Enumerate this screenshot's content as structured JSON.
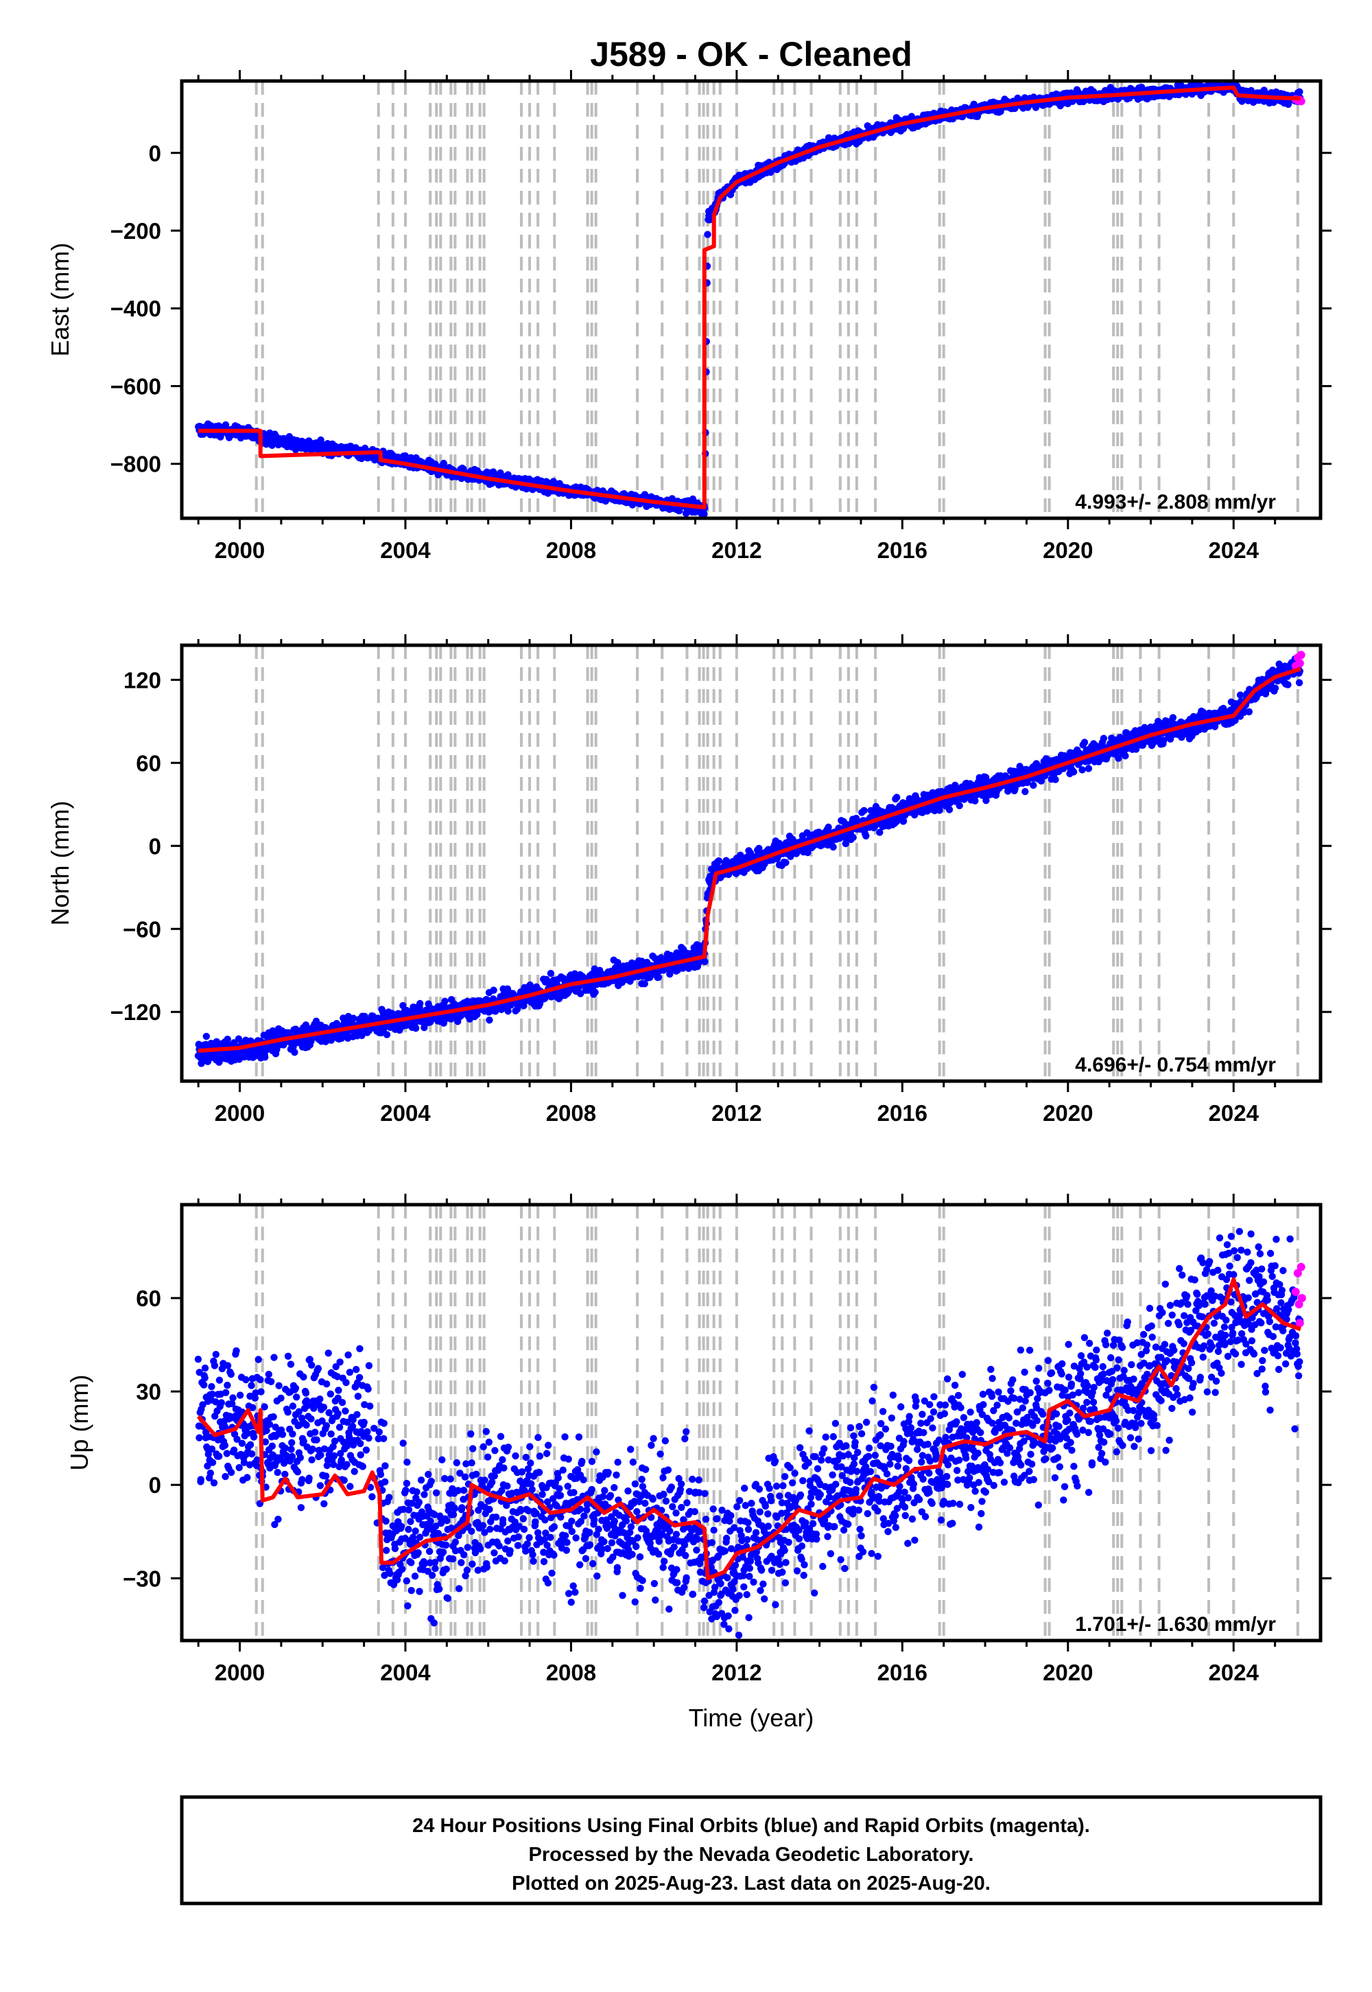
{
  "colors": {
    "final": "#0000ff",
    "rapid": "#ff00ff",
    "model": "#ff0000",
    "steps": "#bdbdbd",
    "frame": "#000000"
  },
  "footer": {
    "line1": "24 Hour Positions Using Final Orbits (blue) and Rapid Orbits (magenta).",
    "line2": "Processed by the Nevada Geodetic Laboratory.",
    "line3": "Plotted on 2025-Aug-23. Last data on 2025-Aug-20."
  },
  "chart_data": [
    {
      "type": "scatter",
      "title": "J589  - OK - Cleaned",
      "xlabel": "",
      "ylabel": "East (mm)",
      "xlim": [
        1998.6,
        2026.1
      ],
      "ylim": [
        -940,
        185
      ],
      "xticks": [
        2000,
        2004,
        2008,
        2012,
        2016,
        2020,
        2024
      ],
      "yticks": [
        0,
        -200,
        -400,
        -600,
        -800
      ],
      "rate_label": "4.993+/- 2.808 mm/yr",
      "steps": [
        2000.4,
        2000.55,
        2003.35,
        2003.7,
        2004.0,
        2004.6,
        2004.75,
        2004.85,
        2005.1,
        2005.2,
        2005.5,
        2005.6,
        2005.8,
        2005.9,
        2006.8,
        2007.0,
        2007.2,
        2007.6,
        2008.4,
        2008.5,
        2008.6,
        2009.6,
        2010.2,
        2010.8,
        2011.1,
        2011.2,
        2011.3,
        2011.45,
        2011.6,
        2012.0,
        2012.9,
        2013.1,
        2013.4,
        2013.8,
        2014.5,
        2014.7,
        2014.9,
        2015.35,
        2016.9,
        2017.0,
        2019.45,
        2019.55,
        2021.1,
        2021.2,
        2021.3,
        2021.75,
        2022.2,
        2023.4,
        2024.0,
        2025.55
      ],
      "final": [
        [
          1999.0,
          -712
        ],
        [
          2000.0,
          -718
        ],
        [
          2001.0,
          -742
        ],
        [
          2002.0,
          -758
        ],
        [
          2003.0,
          -772
        ],
        [
          2004.0,
          -796
        ],
        [
          2005.0,
          -818
        ],
        [
          2006.0,
          -836
        ],
        [
          2007.0,
          -852
        ],
        [
          2008.0,
          -868
        ],
        [
          2009.0,
          -884
        ],
        [
          2010.0,
          -898
        ],
        [
          2011.0,
          -912
        ],
        [
          2011.23,
          -914
        ],
        [
          2011.3,
          -175
        ],
        [
          2011.6,
          -115
        ],
        [
          2012.0,
          -75
        ],
        [
          2013.0,
          -25
        ],
        [
          2014.0,
          15
        ],
        [
          2015.0,
          45
        ],
        [
          2016.0,
          75
        ],
        [
          2017.0,
          95
        ],
        [
          2018.0,
          115
        ],
        [
          2019.0,
          130
        ],
        [
          2020.0,
          142
        ],
        [
          2021.0,
          148
        ],
        [
          2022.0,
          155
        ],
        [
          2023.0,
          162
        ],
        [
          2024.0,
          172
        ],
        [
          2024.2,
          148
        ],
        [
          2025.0,
          142
        ],
        [
          2025.6,
          138
        ]
      ],
      "final_spread": 7,
      "rapid": [
        [
          2025.5,
          138
        ],
        [
          2025.55,
          135
        ],
        [
          2025.6,
          136
        ],
        [
          2025.63,
          133
        ]
      ],
      "model": [
        [
          1999.0,
          -715
        ],
        [
          2000.5,
          -715
        ],
        [
          2000.5,
          -780
        ],
        [
          2003.4,
          -770
        ],
        [
          2003.4,
          -790
        ],
        [
          2004.0,
          -800
        ],
        [
          2006.0,
          -838
        ],
        [
          2008.0,
          -870
        ],
        [
          2010.0,
          -898
        ],
        [
          2011.22,
          -912
        ],
        [
          2011.22,
          -250
        ],
        [
          2011.45,
          -240
        ],
        [
          2011.45,
          -160
        ],
        [
          2011.6,
          -115
        ],
        [
          2012.0,
          -75
        ],
        [
          2013.0,
          -25
        ],
        [
          2014.0,
          15
        ],
        [
          2015.0,
          45
        ],
        [
          2016.0,
          75
        ],
        [
          2017.0,
          95
        ],
        [
          2018.0,
          115
        ],
        [
          2019.0,
          130
        ],
        [
          2020.0,
          142
        ],
        [
          2021.0,
          148
        ],
        [
          2022.0,
          155
        ],
        [
          2023.0,
          162
        ],
        [
          2024.0,
          168
        ],
        [
          2024.1,
          148
        ],
        [
          2025.0,
          142
        ],
        [
          2025.62,
          140
        ]
      ]
    },
    {
      "type": "scatter",
      "title": "",
      "xlabel": "",
      "ylabel": "North (mm)",
      "xlim": [
        1998.6,
        2026.1
      ],
      "ylim": [
        -170,
        145
      ],
      "xticks": [
        2000,
        2004,
        2008,
        2012,
        2016,
        2020,
        2024
      ],
      "yticks": [
        120,
        60,
        0,
        -60,
        -120
      ],
      "rate_label": "4.696+/- 0.754 mm/yr",
      "steps": [
        2000.4,
        2000.55,
        2003.35,
        2003.7,
        2004.0,
        2004.6,
        2004.75,
        2004.85,
        2005.1,
        2005.2,
        2005.5,
        2005.6,
        2005.8,
        2005.9,
        2006.8,
        2007.0,
        2007.2,
        2007.6,
        2008.4,
        2008.5,
        2008.6,
        2009.6,
        2010.2,
        2010.8,
        2011.1,
        2011.2,
        2011.3,
        2011.45,
        2011.6,
        2012.0,
        2012.9,
        2013.1,
        2013.4,
        2013.8,
        2014.5,
        2014.7,
        2014.9,
        2015.35,
        2016.9,
        2017.0,
        2019.45,
        2019.55,
        2021.1,
        2021.2,
        2021.3,
        2021.75,
        2022.2,
        2023.4,
        2024.0,
        2025.55
      ],
      "final": [
        [
          1999.0,
          -150
        ],
        [
          2000.0,
          -148
        ],
        [
          2001.0,
          -140
        ],
        [
          2002.0,
          -135
        ],
        [
          2003.0,
          -130
        ],
        [
          2004.0,
          -125
        ],
        [
          2005.0,
          -120
        ],
        [
          2006.0,
          -115
        ],
        [
          2007.0,
          -108
        ],
        [
          2008.0,
          -100
        ],
        [
          2009.0,
          -95
        ],
        [
          2010.0,
          -88
        ],
        [
          2011.0,
          -80
        ],
        [
          2011.23,
          -78
        ],
        [
          2011.3,
          -30
        ],
        [
          2011.5,
          -18
        ],
        [
          2012.0,
          -15
        ],
        [
          2013.0,
          -5
        ],
        [
          2014.0,
          5
        ],
        [
          2015.0,
          15
        ],
        [
          2016.0,
          25
        ],
        [
          2017.0,
          35
        ],
        [
          2018.0,
          42
        ],
        [
          2019.0,
          50
        ],
        [
          2020.0,
          60
        ],
        [
          2021.0,
          70
        ],
        [
          2022.0,
          80
        ],
        [
          2023.0,
          88
        ],
        [
          2024.0,
          95
        ],
        [
          2024.5,
          110
        ],
        [
          2025.0,
          122
        ],
        [
          2025.6,
          128
        ]
      ],
      "final_spread": 4,
      "rapid": [
        [
          2025.5,
          130
        ],
        [
          2025.55,
          136
        ],
        [
          2025.6,
          132
        ],
        [
          2025.63,
          138
        ]
      ],
      "model": [
        [
          1999.0,
          -148
        ],
        [
          2000.0,
          -146
        ],
        [
          2001.0,
          -140
        ],
        [
          2002.0,
          -135
        ],
        [
          2003.0,
          -130
        ],
        [
          2004.0,
          -125
        ],
        [
          2005.0,
          -120
        ],
        [
          2006.0,
          -115
        ],
        [
          2007.0,
          -108
        ],
        [
          2008.0,
          -100
        ],
        [
          2009.0,
          -95
        ],
        [
          2010.0,
          -88
        ],
        [
          2011.22,
          -80
        ],
        [
          2011.3,
          -50
        ],
        [
          2011.5,
          -20
        ],
        [
          2012.0,
          -16
        ],
        [
          2013.0,
          -5
        ],
        [
          2014.0,
          5
        ],
        [
          2015.0,
          15
        ],
        [
          2016.0,
          25
        ],
        [
          2017.0,
          35
        ],
        [
          2018.0,
          42
        ],
        [
          2019.0,
          50
        ],
        [
          2020.0,
          60
        ],
        [
          2021.0,
          70
        ],
        [
          2022.0,
          80
        ],
        [
          2023.0,
          88
        ],
        [
          2024.0,
          94
        ],
        [
          2024.5,
          112
        ],
        [
          2025.0,
          122
        ],
        [
          2025.62,
          128
        ]
      ]
    },
    {
      "type": "scatter",
      "title": "",
      "xlabel": "Time (year)",
      "ylabel": "Up (mm)",
      "xlim": [
        1998.6,
        2026.1
      ],
      "ylim": [
        -50,
        90
      ],
      "xticks": [
        2000,
        2004,
        2008,
        2012,
        2016,
        2020,
        2024
      ],
      "yticks": [
        60,
        30,
        0,
        -30
      ],
      "rate_label": "1.701+/- 1.630 mm/yr",
      "steps": [
        2000.4,
        2000.55,
        2003.35,
        2003.7,
        2004.0,
        2004.6,
        2004.75,
        2004.85,
        2005.1,
        2005.2,
        2005.5,
        2005.6,
        2005.8,
        2005.9,
        2006.8,
        2007.0,
        2007.2,
        2007.6,
        2008.4,
        2008.5,
        2008.6,
        2009.6,
        2010.2,
        2010.8,
        2011.1,
        2011.2,
        2011.3,
        2011.45,
        2011.6,
        2012.0,
        2012.9,
        2013.1,
        2013.4,
        2013.8,
        2014.5,
        2014.7,
        2014.9,
        2015.35,
        2016.9,
        2017.0,
        2019.45,
        2019.55,
        2021.1,
        2021.2,
        2021.3,
        2021.75,
        2022.2,
        2023.4,
        2024.0,
        2025.55
      ],
      "final": [
        [
          1999.0,
          20
        ],
        [
          2000.0,
          22
        ],
        [
          2000.5,
          18
        ],
        [
          2001.0,
          15
        ],
        [
          2002.0,
          20
        ],
        [
          2003.0,
          22
        ],
        [
          2003.4,
          10
        ],
        [
          2003.6,
          -22
        ],
        [
          2004.0,
          -20
        ],
        [
          2005.0,
          -15
        ],
        [
          2006.0,
          -5
        ],
        [
          2007.0,
          -8
        ],
        [
          2008.0,
          -10
        ],
        [
          2009.0,
          -10
        ],
        [
          2010.0,
          -12
        ],
        [
          2011.0,
          -15
        ],
        [
          2011.3,
          -28
        ],
        [
          2012.0,
          -22
        ],
        [
          2013.0,
          -12
        ],
        [
          2014.0,
          -5
        ],
        [
          2015.0,
          0
        ],
        [
          2016.0,
          5
        ],
        [
          2017.0,
          10
        ],
        [
          2018.0,
          15
        ],
        [
          2019.0,
          18
        ],
        [
          2020.0,
          22
        ],
        [
          2021.0,
          28
        ],
        [
          2022.0,
          35
        ],
        [
          2023.0,
          48
        ],
        [
          2024.0,
          62
        ],
        [
          2024.5,
          58
        ],
        [
          2025.0,
          55
        ],
        [
          2025.6,
          45
        ]
      ],
      "final_spread": 11,
      "rapid": [
        [
          2025.5,
          62
        ],
        [
          2025.55,
          68
        ],
        [
          2025.58,
          58
        ],
        [
          2025.6,
          52
        ],
        [
          2025.63,
          70
        ],
        [
          2025.65,
          60
        ]
      ],
      "model": [
        [
          1999.0,
          22
        ],
        [
          1999.4,
          16
        ],
        [
          1999.9,
          18
        ],
        [
          2000.2,
          24
        ],
        [
          2000.45,
          17
        ],
        [
          2000.5,
          24
        ],
        [
          2000.55,
          -5
        ],
        [
          2000.8,
          -4
        ],
        [
          2001.1,
          2
        ],
        [
          2001.4,
          -4
        ],
        [
          2002.0,
          -3
        ],
        [
          2002.3,
          3
        ],
        [
          2002.6,
          -3
        ],
        [
          2003.0,
          -2
        ],
        [
          2003.2,
          4
        ],
        [
          2003.38,
          -3
        ],
        [
          2003.42,
          -25
        ],
        [
          2003.7,
          -25
        ],
        [
          2004.0,
          -22
        ],
        [
          2004.5,
          -18
        ],
        [
          2005.0,
          -17
        ],
        [
          2005.5,
          -12
        ],
        [
          2005.6,
          0
        ],
        [
          2006.0,
          -3
        ],
        [
          2006.5,
          -5
        ],
        [
          2007.0,
          -3
        ],
        [
          2007.5,
          -9
        ],
        [
          2008.0,
          -8
        ],
        [
          2008.4,
          -4
        ],
        [
          2008.8,
          -9
        ],
        [
          2009.2,
          -6
        ],
        [
          2009.6,
          -12
        ],
        [
          2010.0,
          -8
        ],
        [
          2010.5,
          -13
        ],
        [
          2011.0,
          -12
        ],
        [
          2011.22,
          -14
        ],
        [
          2011.3,
          -30
        ],
        [
          2011.7,
          -28
        ],
        [
          2012.0,
          -22
        ],
        [
          2012.5,
          -20
        ],
        [
          2013.0,
          -15
        ],
        [
          2013.5,
          -8
        ],
        [
          2014.0,
          -10
        ],
        [
          2014.5,
          -5
        ],
        [
          2015.0,
          -4
        ],
        [
          2015.3,
          2
        ],
        [
          2015.8,
          0
        ],
        [
          2016.3,
          5
        ],
        [
          2016.9,
          6
        ],
        [
          2017.0,
          12
        ],
        [
          2017.5,
          14
        ],
        [
          2018.0,
          13
        ],
        [
          2018.5,
          16
        ],
        [
          2019.0,
          17
        ],
        [
          2019.45,
          14
        ],
        [
          2019.55,
          24
        ],
        [
          2020.0,
          27
        ],
        [
          2020.4,
          22
        ],
        [
          2021.0,
          24
        ],
        [
          2021.2,
          29
        ],
        [
          2021.7,
          27
        ],
        [
          2022.0,
          34
        ],
        [
          2022.2,
          38
        ],
        [
          2022.5,
          32
        ],
        [
          2023.0,
          46
        ],
        [
          2023.4,
          54
        ],
        [
          2023.8,
          58
        ],
        [
          2024.0,
          66
        ],
        [
          2024.3,
          54
        ],
        [
          2024.7,
          58
        ],
        [
          2025.2,
          52
        ],
        [
          2025.62,
          50
        ]
      ]
    }
  ]
}
